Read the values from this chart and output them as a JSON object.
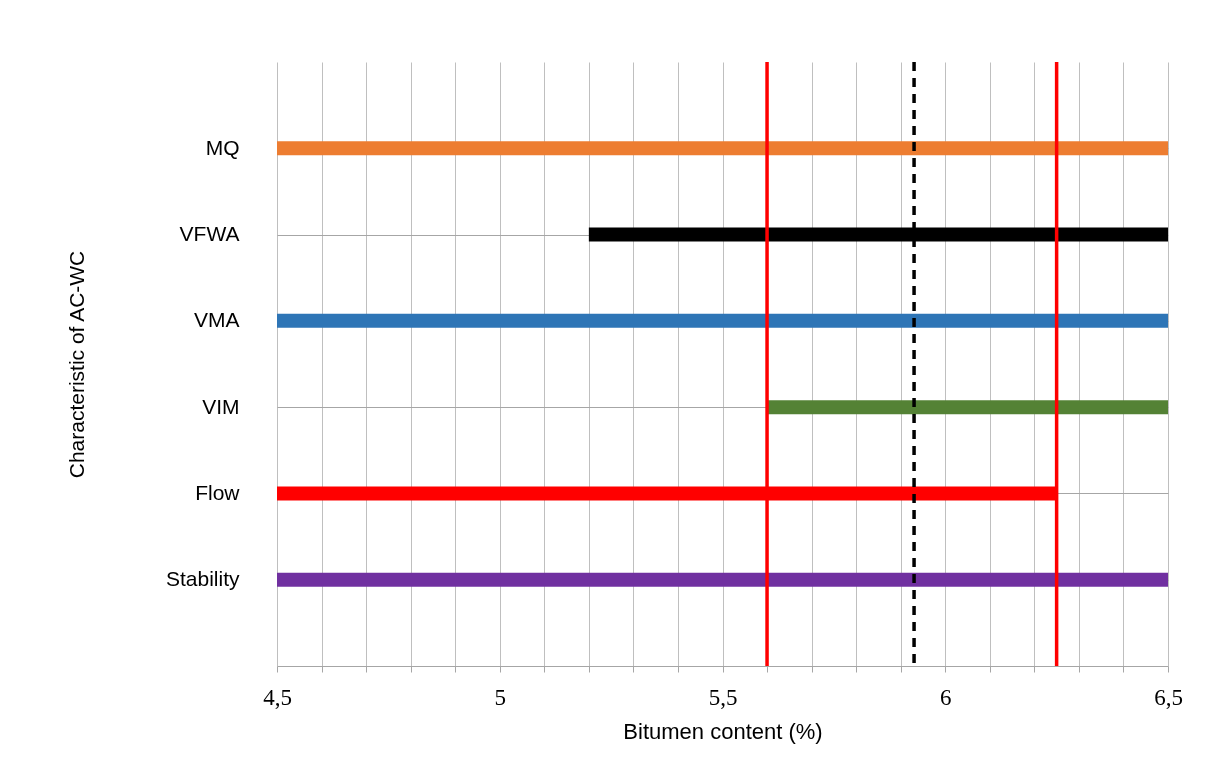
{
  "chart_data": {
    "type": "bar",
    "orientation": "horizontal",
    "categories": [
      "MQ",
      "VFWA",
      "VMA",
      "VIM",
      "Flow",
      "Stability"
    ],
    "values": [
      2,
      1.3,
      2,
      0.9,
      1.75,
      2
    ],
    "base": [
      4.5,
      5.2,
      4.5,
      5.6,
      4.5,
      4.5
    ],
    "colors": [
      "#ed7d31",
      "#000000",
      "#2e75b6",
      "#548235",
      "#ff0000",
      "#7030a0"
    ],
    "xlabel": "Bitumen content (%)",
    "ylabel": "Characteristic of AC-WC",
    "xlim": [
      4.5,
      6.5
    ],
    "xticks": [
      {
        "value": 4.5,
        "label": "4,5"
      },
      {
        "value": 4.6,
        "label": null
      },
      {
        "value": 4.7,
        "label": null
      },
      {
        "value": 4.8,
        "label": null
      },
      {
        "value": 4.9,
        "label": null
      },
      5,
      {
        "value": 5.1,
        "label": null
      },
      {
        "value": 5.2,
        "label": null
      },
      {
        "value": 5.3,
        "label": null
      },
      {
        "value": 5.4,
        "label": null
      },
      {
        "value": 5.5,
        "label": "5,5"
      },
      {
        "value": 5.6,
        "label": null
      },
      {
        "value": 5.7,
        "label": null
      },
      {
        "value": 5.8,
        "label": null
      },
      {
        "value": 5.9,
        "label": null
      },
      6,
      {
        "value": 6.1,
        "label": null
      },
      {
        "value": 6.2,
        "label": null
      },
      {
        "value": 6.3,
        "label": null
      },
      {
        "value": 6.4,
        "label": null
      },
      {
        "value": 6.5,
        "label": "6,5"
      }
    ],
    "ref_lines": [
      {
        "axis": "x",
        "value": 5.6,
        "color": "#ff0000",
        "line_style": "solid"
      },
      {
        "axis": "x",
        "value": 6.25,
        "color": "#ff0000",
        "line_style": "solid"
      },
      {
        "axis": "x",
        "value": 5.93,
        "color": "#000000",
        "line_style": "dashed"
      }
    ],
    "grid": true
  }
}
